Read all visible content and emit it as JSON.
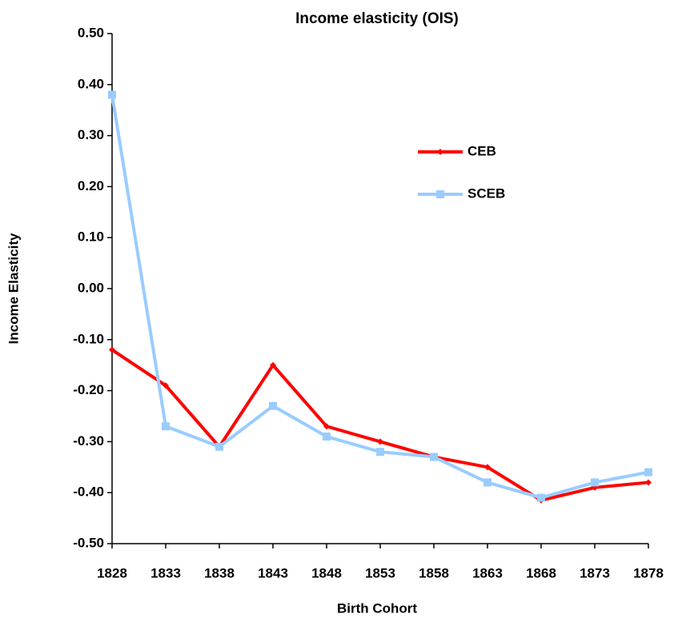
{
  "chart_data": {
    "type": "line",
    "title": "Income elasticity (OIS)",
    "x_label": "Birth Cohort",
    "y_label": "Income Elasticity",
    "categories": [
      "1828",
      "1833",
      "1838",
      "1843",
      "1848",
      "1853",
      "1858",
      "1863",
      "1868",
      "1873",
      "1878"
    ],
    "series": [
      {
        "name": "CEB",
        "color": "#ff0000",
        "marker": "diamond",
        "values": [
          -0.12,
          -0.19,
          -0.31,
          -0.15,
          -0.27,
          -0.3,
          -0.33,
          -0.35,
          -0.415,
          -0.39,
          -0.38
        ]
      },
      {
        "name": "SCEB",
        "color": "#99ccff",
        "marker": "square",
        "values": [
          0.38,
          -0.27,
          -0.31,
          -0.23,
          -0.29,
          -0.32,
          -0.33,
          -0.38,
          -0.41,
          -0.38,
          -0.36
        ]
      }
    ],
    "ylim": [
      -0.5,
      0.5
    ],
    "yticks": [
      {
        "value": -0.5,
        "label": "-0.50"
      },
      {
        "value": -0.4,
        "label": "-0.40"
      },
      {
        "value": -0.3,
        "label": "-0.30"
      },
      {
        "value": -0.2,
        "label": "-0.20"
      },
      {
        "value": -0.1,
        "label": "-0.10"
      },
      {
        "value": 0,
        "label": "0.00"
      },
      {
        "value": 0.1,
        "label": "0.10"
      },
      {
        "value": 0.2,
        "label": "0.20"
      },
      {
        "value": 0.3,
        "label": "0.30"
      },
      {
        "value": 0.4,
        "label": "0.40"
      },
      {
        "value": 0.5,
        "label": "0.50"
      }
    ],
    "grid": false
  }
}
